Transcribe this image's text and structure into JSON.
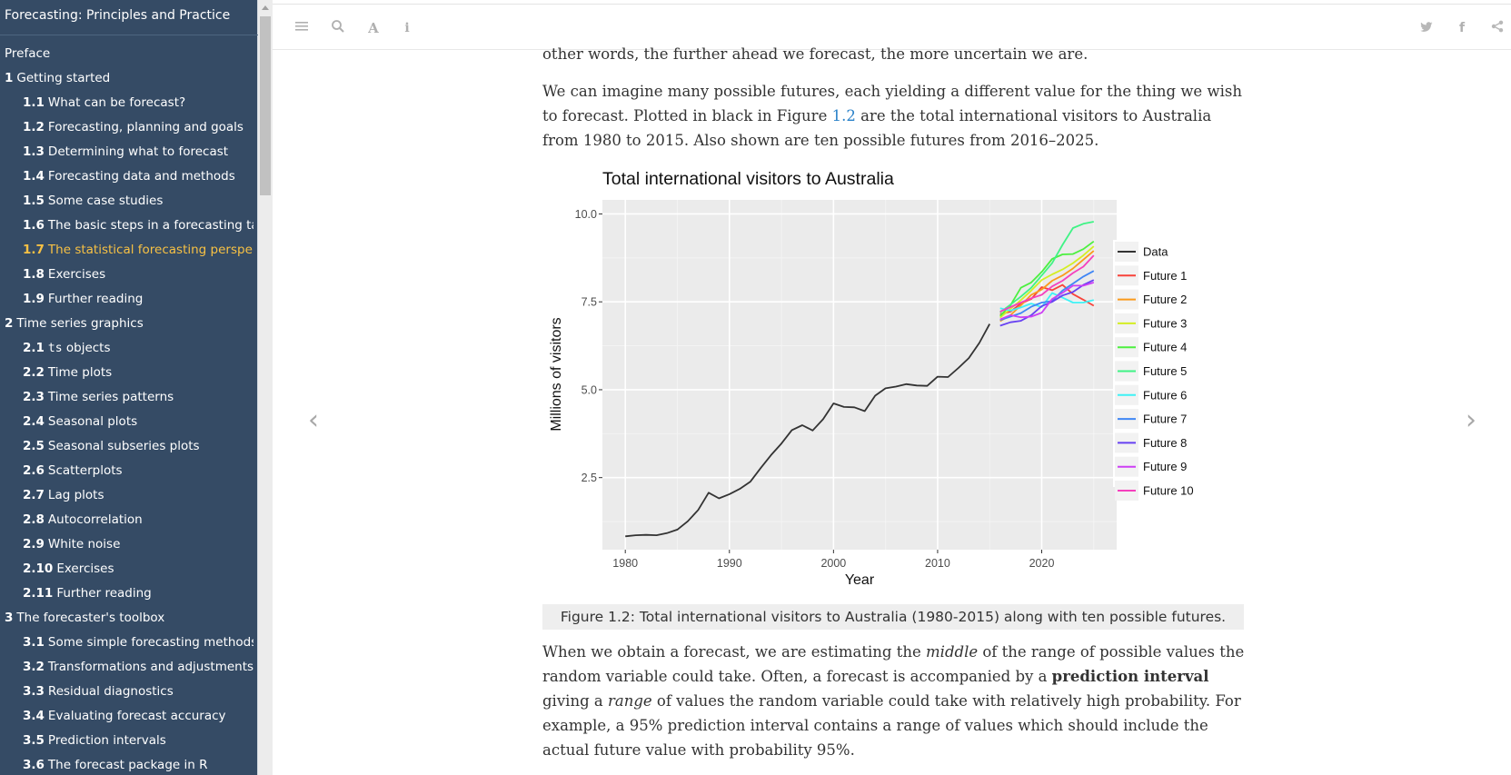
{
  "sidebar": {
    "title": "Forecasting: Principles and Practice",
    "items": [
      {
        "num": "",
        "label": "Preface",
        "level": 0
      },
      {
        "num": "1",
        "label": "Getting started",
        "level": 0
      },
      {
        "num": "1.1",
        "label": "What can be forecast?",
        "level": 1
      },
      {
        "num": "1.2",
        "label": "Forecasting, planning and goals",
        "level": 1
      },
      {
        "num": "1.3",
        "label": "Determining what to forecast",
        "level": 1
      },
      {
        "num": "1.4",
        "label": "Forecasting data and methods",
        "level": 1
      },
      {
        "num": "1.5",
        "label": "Some case studies",
        "level": 1
      },
      {
        "num": "1.6",
        "label": "The basic steps in a forecasting ta...",
        "level": 1
      },
      {
        "num": "1.7",
        "label": "The statistical forecasting perspe...",
        "level": 1,
        "active": true
      },
      {
        "num": "1.8",
        "label": "Exercises",
        "level": 1
      },
      {
        "num": "1.9",
        "label": "Further reading",
        "level": 1
      },
      {
        "num": "2",
        "label": "Time series graphics",
        "level": 0
      },
      {
        "num": "2.1",
        "label": "ts",
        "suffix": " objects",
        "level": 1,
        "code": true
      },
      {
        "num": "2.2",
        "label": "Time plots",
        "level": 1
      },
      {
        "num": "2.3",
        "label": "Time series patterns",
        "level": 1
      },
      {
        "num": "2.4",
        "label": "Seasonal plots",
        "level": 1
      },
      {
        "num": "2.5",
        "label": "Seasonal subseries plots",
        "level": 1
      },
      {
        "num": "2.6",
        "label": "Scatterplots",
        "level": 1
      },
      {
        "num": "2.7",
        "label": "Lag plots",
        "level": 1
      },
      {
        "num": "2.8",
        "label": "Autocorrelation",
        "level": 1
      },
      {
        "num": "2.9",
        "label": "White noise",
        "level": 1
      },
      {
        "num": "2.10",
        "label": "Exercises",
        "level": 1
      },
      {
        "num": "2.11",
        "label": "Further reading",
        "level": 1
      },
      {
        "num": "3",
        "label": "The forecaster's toolbox",
        "level": 0
      },
      {
        "num": "3.1",
        "label": "Some simple forecasting methods",
        "level": 1
      },
      {
        "num": "3.2",
        "label": "Transformations and adjustments",
        "level": 1
      },
      {
        "num": "3.3",
        "label": "Residual diagnostics",
        "level": 1
      },
      {
        "num": "3.4",
        "label": "Evaluating forecast accuracy",
        "level": 1
      },
      {
        "num": "3.5",
        "label": "Prediction intervals",
        "level": 1
      },
      {
        "num": "3.6",
        "label": "The forecast package in R",
        "level": 1
      }
    ]
  },
  "toolbar": {
    "left_icons": [
      "menu-icon",
      "search-icon",
      "font-icon",
      "info-icon"
    ],
    "right_icons": [
      "twitter-icon",
      "facebook-icon",
      "share-icon"
    ]
  },
  "nav": {
    "prev": "‹",
    "next": "›"
  },
  "content": {
    "para1": "other words, the further ahead we forecast, the more uncertain we are.",
    "para2_a": "We can imagine many possible futures, each yielding a different value for the thing we wish to forecast. Plotted in black in Figure ",
    "para2_link": "1.2",
    "para2_b": " are the total international visitors to Australia from 1980 to 2015. Also shown are ten possible futures from 2016–2025.",
    "caption": "Figure 1.2: Total international visitors to Australia (1980-2015) along with ten possible futures.",
    "para3_a": "When we obtain a forecast, we are estimating the ",
    "para3_em1": "middle",
    "para3_b": " of the range of possible values the random variable could take. Often, a forecast is accompanied by a ",
    "para3_strong": "prediction interval",
    "para3_c": " giving a ",
    "para3_em2": "range",
    "para3_d": " of values the random variable could take with relatively high probability. For example, a 95% prediction interval contains a range of values which should include the actual future value with probability 95%."
  },
  "chart_data": {
    "type": "line",
    "title": "Total international visitors to Australia",
    "xlabel": "Year",
    "ylabel": "Millions of visitors",
    "xlim": [
      1977.8,
      2027.2
    ],
    "ylim": [
      0.45,
      10.4
    ],
    "xticks": [
      1980,
      1990,
      2000,
      2010,
      2020
    ],
    "yticks": [
      2.5,
      5.0,
      7.5,
      10.0
    ],
    "ytick_labels": [
      "2.5",
      "5.0",
      "7.5",
      "10.0"
    ],
    "grid": true,
    "legend_position": "right",
    "series": [
      {
        "name": "Data",
        "color": "#333333",
        "x": [
          1980,
          1981,
          1982,
          1983,
          1984,
          1985,
          1986,
          1987,
          1988,
          1989,
          1990,
          1991,
          1992,
          1993,
          1994,
          1995,
          1996,
          1997,
          1998,
          1999,
          2000,
          2001,
          2002,
          2003,
          2004,
          2005,
          2006,
          2007,
          2008,
          2009,
          2010,
          2011,
          2012,
          2013,
          2014,
          2015
        ],
        "values": [
          0.83,
          0.86,
          0.87,
          0.86,
          0.92,
          1.02,
          1.26,
          1.58,
          2.07,
          1.91,
          2.03,
          2.18,
          2.38,
          2.77,
          3.14,
          3.47,
          3.85,
          3.99,
          3.84,
          4.16,
          4.61,
          4.51,
          4.5,
          4.39,
          4.83,
          5.04,
          5.09,
          5.16,
          5.12,
          5.11,
          5.37,
          5.36,
          5.62,
          5.9,
          6.33,
          6.87
        ]
      },
      {
        "name": "Future 1",
        "color": "#f8433a",
        "x": [
          2016,
          2017,
          2018,
          2019,
          2020,
          2021,
          2022,
          2023,
          2024,
          2025
        ],
        "values": [
          7.15,
          7.22,
          7.45,
          7.58,
          7.92,
          7.83,
          7.98,
          7.72,
          7.56,
          7.39
        ]
      },
      {
        "name": "Future 2",
        "color": "#fa9a1b",
        "x": [
          2016,
          2017,
          2018,
          2019,
          2020,
          2021,
          2022,
          2023,
          2024,
          2025
        ],
        "values": [
          6.95,
          7.12,
          7.4,
          7.7,
          7.85,
          8.1,
          8.25,
          8.45,
          8.7,
          8.95
        ]
      },
      {
        "name": "Future 3",
        "color": "#d4ee24",
        "x": [
          2016,
          2017,
          2018,
          2019,
          2020,
          2021,
          2022,
          2023,
          2024,
          2025
        ],
        "values": [
          7.05,
          7.3,
          7.55,
          7.82,
          8.12,
          8.28,
          8.42,
          8.6,
          8.82,
          9.08
        ]
      },
      {
        "name": "Future 4",
        "color": "#4cf03f",
        "x": [
          2016,
          2017,
          2018,
          2019,
          2020,
          2021,
          2022,
          2023,
          2024,
          2025
        ],
        "values": [
          7.1,
          7.4,
          7.9,
          8.05,
          8.35,
          8.72,
          8.85,
          8.86,
          9.0,
          9.22
        ]
      },
      {
        "name": "Future 5",
        "color": "#3ff385",
        "x": [
          2016,
          2017,
          2018,
          2019,
          2020,
          2021,
          2022,
          2023,
          2024,
          2025
        ],
        "values": [
          7.2,
          7.42,
          7.65,
          7.9,
          8.25,
          8.6,
          9.12,
          9.6,
          9.72,
          9.78
        ]
      },
      {
        "name": "Future 6",
        "color": "#3ef2f6",
        "x": [
          2016,
          2017,
          2018,
          2019,
          2020,
          2021,
          2022,
          2023,
          2024,
          2025
        ],
        "values": [
          7.32,
          7.25,
          7.34,
          7.45,
          7.35,
          7.75,
          7.62,
          7.48,
          7.48,
          7.55
        ]
      },
      {
        "name": "Future 7",
        "color": "#3f86f5",
        "x": [
          2016,
          2017,
          2018,
          2019,
          2020,
          2021,
          2022,
          2023,
          2024,
          2025
        ],
        "values": [
          6.98,
          7.08,
          7.18,
          7.36,
          7.48,
          7.52,
          7.82,
          8.02,
          8.22,
          8.38
        ]
      },
      {
        "name": "Future 8",
        "color": "#6741f2",
        "x": [
          2016,
          2017,
          2018,
          2019,
          2020,
          2021,
          2022,
          2023,
          2024,
          2025
        ],
        "values": [
          6.82,
          6.92,
          6.96,
          7.12,
          7.38,
          7.5,
          7.68,
          7.78,
          7.98,
          8.12
        ]
      },
      {
        "name": "Future 9",
        "color": "#cd3ff4",
        "x": [
          2016,
          2017,
          2018,
          2019,
          2020,
          2021,
          2022,
          2023,
          2024,
          2025
        ],
        "values": [
          7.0,
          7.12,
          7.06,
          7.08,
          7.19,
          7.58,
          7.76,
          7.96,
          7.96,
          8.05
        ]
      },
      {
        "name": "Future 10",
        "color": "#f540bd",
        "x": [
          2016,
          2017,
          2018,
          2019,
          2020,
          2021,
          2022,
          2023,
          2024,
          2025
        ],
        "values": [
          7.22,
          7.35,
          7.48,
          7.6,
          7.7,
          7.94,
          8.1,
          8.32,
          8.5,
          8.82
        ]
      }
    ]
  }
}
